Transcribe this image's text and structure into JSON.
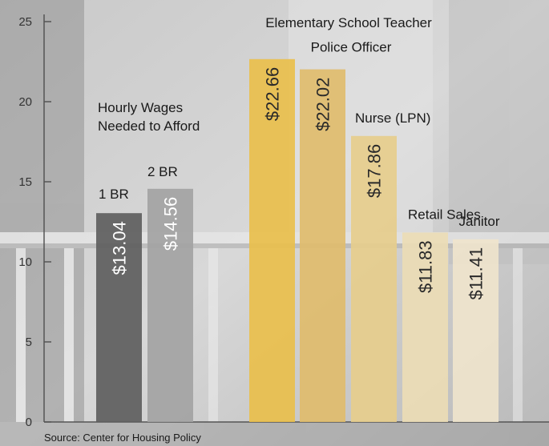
{
  "chart_data": {
    "type": "bar",
    "annotation": [
      "Hourly Wages",
      "Needed to Afford"
    ],
    "source": "Source: Center for Housing Policy",
    "categories": [
      "1 BR",
      "2 BR",
      "Elementary School Teacher",
      "Police Officer",
      "Nurse (LPN)",
      "Retail Sales",
      "Janitor"
    ],
    "values": [
      13.04,
      14.56,
      22.66,
      22.02,
      17.86,
      11.83,
      11.41
    ],
    "value_labels": [
      "$13.04",
      "$14.56",
      "$22.66",
      "$22.02",
      "$17.86",
      "$11.83",
      "$11.41"
    ],
    "colors": [
      "#5e5e5e",
      "#a3a3a3",
      "#e9bf4c",
      "#dfbc6c",
      "#e6cd8c",
      "#ecdcb5",
      "#efe4cc"
    ],
    "ylim": [
      0,
      25
    ],
    "yticks": [
      0,
      5,
      10,
      15,
      20,
      25
    ]
  }
}
